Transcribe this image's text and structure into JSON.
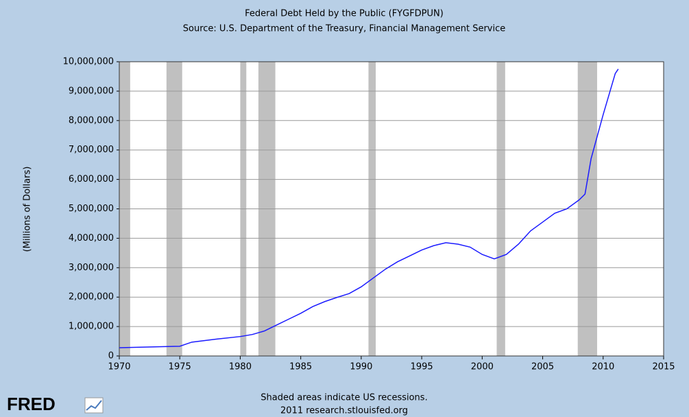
{
  "chart_data": {
    "type": "line",
    "title": "Federal Debt Held by the Public (FYGFDPUN)",
    "subtitle": "Source: U.S. Department of the Treasury, Financial Management Service",
    "y_label": "(Millions of Dollars)",
    "footer": [
      "Shaded areas indicate US recessions.",
      "2011 research.stlouisfed.org"
    ],
    "logo": "FRED",
    "x": [
      1970,
      1972,
      1974,
      1975,
      1975.5,
      1976,
      1978,
      1980,
      1981,
      1982,
      1983,
      1984,
      1985,
      1986,
      1987,
      1988,
      1989,
      1990,
      1991,
      1992,
      1993,
      1994,
      1995,
      1996,
      1997,
      1998,
      1999,
      2000,
      2001,
      2002,
      2003,
      2004,
      2005,
      2006,
      2007,
      2008,
      2008.5,
      2009,
      2010,
      2010.5,
      2011,
      2011.25
    ],
    "values": [
      280000,
      300000,
      320000,
      330000,
      400000,
      470000,
      570000,
      660000,
      730000,
      850000,
      1050000,
      1250000,
      1450000,
      1680000,
      1850000,
      1990000,
      2120000,
      2350000,
      2650000,
      2950000,
      3200000,
      3400000,
      3600000,
      3750000,
      3850000,
      3800000,
      3700000,
      3450000,
      3300000,
      3450000,
      3800000,
      4250000,
      4550000,
      4850000,
      5000000,
      5300000,
      5500000,
      6700000,
      8200000,
      8900000,
      9600000,
      9750000
    ],
    "color": "#1a1aff",
    "recessions": [
      [
        1969.9,
        1970.9
      ],
      [
        1973.9,
        1975.2
      ],
      [
        1980,
        1980.5
      ],
      [
        1981.5,
        1982.9
      ],
      [
        1990.6,
        1991.2
      ],
      [
        2001.2,
        2001.9
      ],
      [
        2007.9,
        2009.5
      ]
    ],
    "recession_color": "#c0c0c0",
    "xlim": [
      1970,
      2015
    ],
    "xticks": [
      1970,
      1975,
      1980,
      1985,
      1990,
      1995,
      2000,
      2005,
      2010,
      2015
    ],
    "ylim": [
      0,
      10000000
    ],
    "yticks": [
      0,
      {
        "value": 1000000,
        "label": "1,000,000"
      },
      {
        "value": 2000000,
        "label": "2,000,000"
      },
      {
        "value": 3000000,
        "label": "3,000,000"
      },
      {
        "value": 4000000,
        "label": "4,000,000"
      },
      {
        "value": 5000000,
        "label": "5,000,000"
      },
      {
        "value": 6000000,
        "label": "6,000,000"
      },
      {
        "value": 7000000,
        "label": "7,000,000"
      },
      {
        "value": 8000000,
        "label": "8,000,000"
      },
      {
        "value": 9000000,
        "label": "9,000,000"
      },
      {
        "value": 10000000,
        "label": "10,000,000"
      }
    ],
    "grid": true
  }
}
